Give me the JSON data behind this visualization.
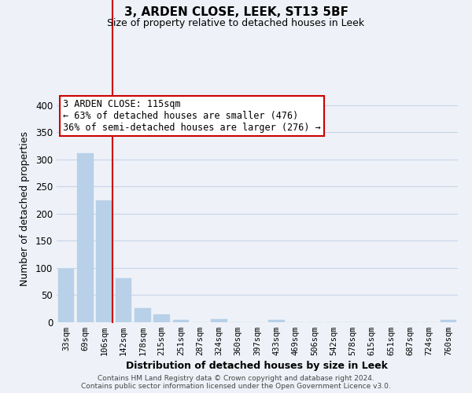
{
  "title": "3, ARDEN CLOSE, LEEK, ST13 5BF",
  "subtitle": "Size of property relative to detached houses in Leek",
  "xlabel": "Distribution of detached houses by size in Leek",
  "ylabel": "Number of detached properties",
  "bin_labels": [
    "33sqm",
    "69sqm",
    "106sqm",
    "142sqm",
    "178sqm",
    "215sqm",
    "251sqm",
    "287sqm",
    "324sqm",
    "360sqm",
    "397sqm",
    "433sqm",
    "469sqm",
    "506sqm",
    "542sqm",
    "578sqm",
    "615sqm",
    "651sqm",
    "687sqm",
    "724sqm",
    "760sqm"
  ],
  "bar_heights": [
    99,
    312,
    224,
    81,
    26,
    14,
    5,
    0,
    6,
    0,
    0,
    5,
    0,
    0,
    0,
    0,
    0,
    0,
    0,
    0,
    5
  ],
  "bar_color": "#b8d0e8",
  "bar_edge_color": "#b8d0e8",
  "grid_color": "#c8d4e8",
  "background_color": "#eef2f8",
  "red_line_bin": 2,
  "annotation_line1": "3 ARDEN CLOSE: 115sqm",
  "annotation_line2": "← 63% of detached houses are smaller (476)",
  "annotation_line3": "36% of semi-detached houses are larger (276) →",
  "annotation_box_color": "#ffffff",
  "annotation_box_edge": "#cc0000",
  "ylim": [
    0,
    420
  ],
  "yticks": [
    0,
    50,
    100,
    150,
    200,
    250,
    300,
    350,
    400
  ],
  "footer1": "Contains HM Land Registry data © Crown copyright and database right 2024.",
  "footer2": "Contains public sector information licensed under the Open Government Licence v3.0."
}
